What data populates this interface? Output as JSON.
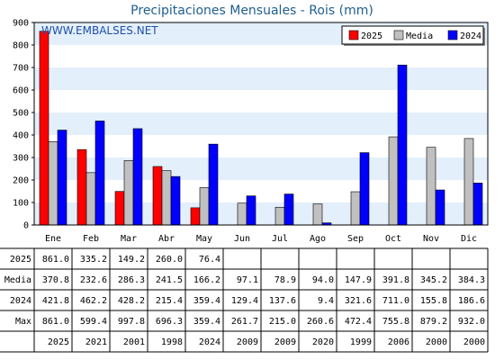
{
  "chart_data": {
    "type": "bar",
    "title": "Precipitaciones Mensuales - Rois (mm)",
    "watermark": "WWW.EMBALSES.NET",
    "categories": [
      "Ene",
      "Feb",
      "Mar",
      "Abr",
      "May",
      "Jun",
      "Jul",
      "Ago",
      "Sep",
      "Oct",
      "Nov",
      "Dic"
    ],
    "ylim": [
      0,
      900
    ],
    "yticks": [
      0,
      100,
      200,
      300,
      400,
      500,
      600,
      700,
      800,
      900
    ],
    "legend_position": "top-right",
    "series": [
      {
        "name": "2025",
        "color": "#ff0000",
        "values": [
          861.0,
          335.2,
          149.2,
          260.0,
          76.4,
          null,
          null,
          null,
          null,
          null,
          null,
          null
        ]
      },
      {
        "name": "Media",
        "color": "#c0c0c0",
        "values": [
          370.8,
          232.6,
          286.3,
          241.5,
          166.2,
          97.1,
          78.9,
          94.0,
          147.9,
          391.8,
          345.2,
          384.3
        ]
      },
      {
        "name": "2024",
        "color": "#0000ff",
        "values": [
          421.8,
          462.2,
          428.2,
          215.4,
          359.4,
          129.4,
          137.6,
          9.4,
          321.6,
          711.0,
          155.8,
          186.6
        ]
      }
    ],
    "table": {
      "rows": [
        {
          "label": "2025",
          "values": [
            "861.0",
            "335.2",
            "149.2",
            "260.0",
            "76.4",
            "",
            "",
            "",
            "",
            "",
            "",
            ""
          ]
        },
        {
          "label": "Media",
          "values": [
            "370.8",
            "232.6",
            "286.3",
            "241.5",
            "166.2",
            "97.1",
            "78.9",
            "94.0",
            "147.9",
            "391.8",
            "345.2",
            "384.3"
          ]
        },
        {
          "label": "2024",
          "values": [
            "421.8",
            "462.2",
            "428.2",
            "215.4",
            "359.4",
            "129.4",
            "137.6",
            "9.4",
            "321.6",
            "711.0",
            "155.8",
            "186.6"
          ]
        },
        {
          "label": "Max",
          "values": [
            "861.0",
            "599.4",
            "997.8",
            "696.3",
            "359.4",
            "261.7",
            "215.0",
            "260.6",
            "472.4",
            "755.8",
            "879.2",
            "932.0"
          ]
        },
        {
          "label": "",
          "values": [
            "2025",
            "2021",
            "2001",
            "1998",
            "2024",
            "2009",
            "2009",
            "2020",
            "1999",
            "2006",
            "2000",
            "2000"
          ]
        }
      ]
    }
  }
}
